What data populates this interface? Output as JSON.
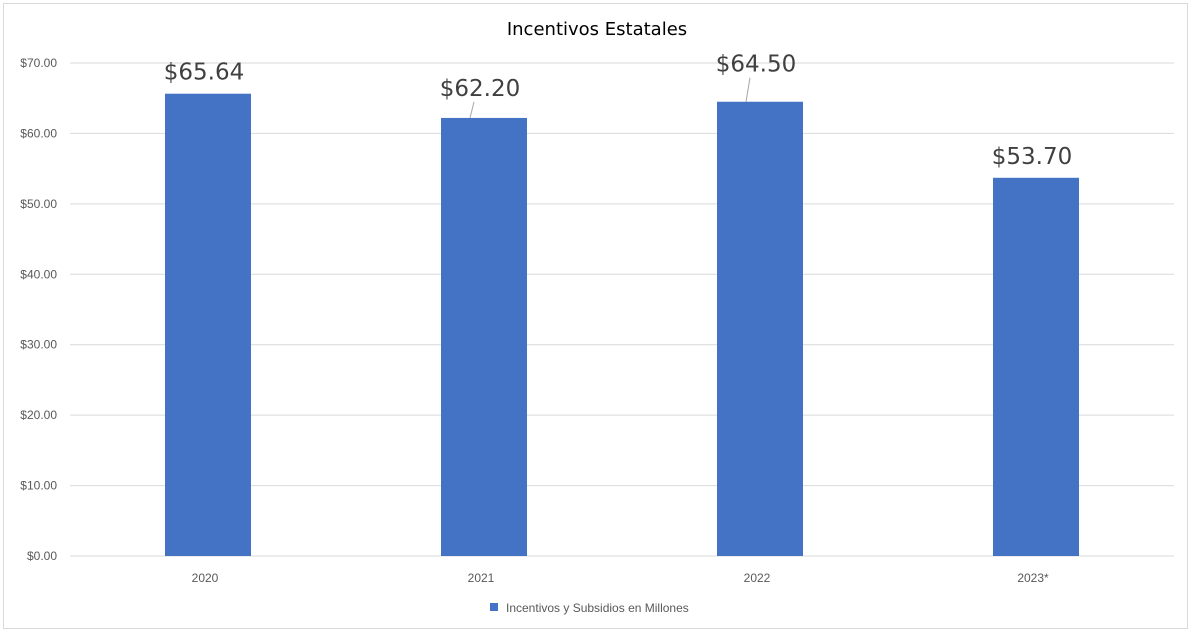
{
  "chart_data": {
    "type": "bar",
    "title": "Incentivos Estatales",
    "categories": [
      "2020",
      "2021",
      "2022",
      "2023*"
    ],
    "series": [
      {
        "name": "Incentivos y Subsidios en Millones",
        "values": [
          65.64,
          62.2,
          64.5,
          53.7
        ],
        "data_labels": [
          "$65.64",
          "$62.20",
          "$64.50",
          "$53.70"
        ],
        "color": "#4472C4"
      }
    ],
    "ylim": [
      0,
      70
    ],
    "yticks": [
      "$0.00",
      "$10.00",
      "$20.00",
      "$30.00",
      "$40.00",
      "$50.00",
      "$60.00",
      "$70.00"
    ],
    "grid": true,
    "legend_position": "bottom"
  }
}
